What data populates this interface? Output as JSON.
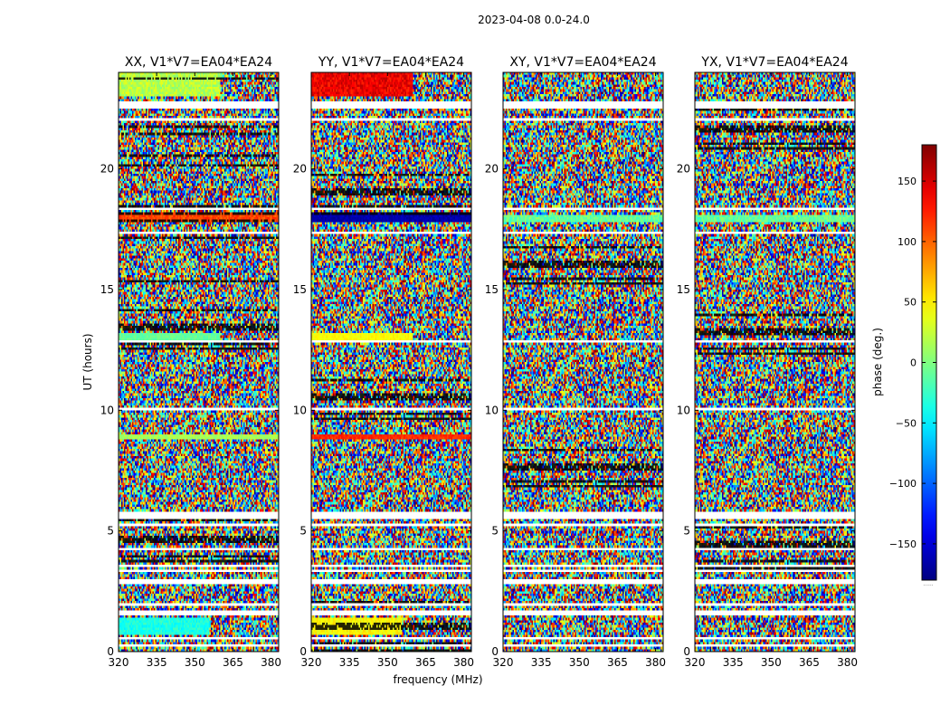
{
  "figure": {
    "suptitle": "2023-04-08 0.0-24.0",
    "xlabel": "frequency (MHz)",
    "ylabel": "UT (hours)",
    "colorbar_label": "phase (deg.)",
    "colorbar_tail_label": "......"
  },
  "chart_data": {
    "type": "heatmap",
    "title": "2023-04-08 0.0-24.0",
    "xlabel": "frequency (MHz)",
    "ylabel": "UT (hours)",
    "xlim": [
      320,
      383
    ],
    "ylim": [
      0,
      24
    ],
    "xticks": [
      320,
      335,
      350,
      365,
      380
    ],
    "xtick_labels": [
      "320",
      "335",
      "350",
      "365",
      "380"
    ],
    "yticks": [
      0,
      5,
      10,
      15,
      20
    ],
    "ytick_labels": [
      "0",
      "5",
      "10",
      "15",
      "20"
    ],
    "colorbar": {
      "label": "phase (deg.)",
      "range": [
        -180,
        180
      ],
      "ticks": [
        -150,
        -100,
        -50,
        0,
        50,
        100,
        150
      ],
      "tick_labels": [
        "−150",
        "−100",
        "−50",
        "0",
        "50",
        "100",
        "150"
      ],
      "colormap": "jet"
    },
    "flagged_ut_ranges": [
      [
        0.15,
        0.25
      ],
      [
        0.55,
        0.6
      ],
      [
        1.45,
        1.65
      ],
      [
        1.95,
        2.0
      ],
      [
        2.85,
        3.0
      ],
      [
        3.3,
        3.45
      ],
      [
        3.55,
        3.6
      ],
      [
        4.25,
        4.3
      ],
      [
        4.65,
        4.7
      ],
      [
        5.25,
        5.35
      ],
      [
        5.5,
        5.75
      ],
      [
        6.15,
        6.2
      ],
      [
        10.0,
        10.05
      ],
      [
        12.8,
        12.85
      ],
      [
        13.65,
        13.7
      ],
      [
        17.3,
        17.35
      ],
      [
        18.35,
        18.4
      ],
      [
        22.0,
        22.1
      ],
      [
        22.55,
        22.8
      ]
    ],
    "panels": [
      {
        "name": "XX",
        "title": "XX, V1*V7=EA04*EA24",
        "coherent_bands": [
          {
            "ut": [
              23.05,
              24.0
            ],
            "freq": [
              320,
              360
            ],
            "phase_deg": 20,
            "spread_deg": 40
          },
          {
            "ut": [
              17.85,
              18.15
            ],
            "freq": [
              320,
              383
            ],
            "phase_deg": 110,
            "spread_deg": 30
          },
          {
            "ut": [
              12.9,
              13.15
            ],
            "freq": [
              320,
              360
            ],
            "phase_deg": -10,
            "spread_deg": 20
          },
          {
            "ut": [
              8.8,
              9.0
            ],
            "freq": [
              320,
              383
            ],
            "phase_deg": 15,
            "spread_deg": 20
          },
          {
            "ut": [
              0.7,
              1.4
            ],
            "freq": [
              320,
              356
            ],
            "phase_deg": -35,
            "spread_deg": 30
          }
        ]
      },
      {
        "name": "YY",
        "title": "YY, V1*V7=EA04*EA24",
        "coherent_bands": [
          {
            "ut": [
              23.05,
              24.0
            ],
            "freq": [
              320,
              360
            ],
            "phase_deg": 140,
            "spread_deg": 40
          },
          {
            "ut": [
              17.85,
              18.15
            ],
            "freq": [
              320,
              383
            ],
            "phase_deg": -165,
            "spread_deg": 20
          },
          {
            "ut": [
              12.9,
              13.15
            ],
            "freq": [
              320,
              360
            ],
            "phase_deg": 45,
            "spread_deg": 20
          },
          {
            "ut": [
              8.8,
              9.0
            ],
            "freq": [
              320,
              383
            ],
            "phase_deg": 120,
            "spread_deg": 20
          },
          {
            "ut": [
              0.7,
              1.4
            ],
            "freq": [
              320,
              356
            ],
            "phase_deg": 45,
            "spread_deg": 30
          }
        ]
      },
      {
        "name": "XY",
        "title": "XY, V1*V7=EA04*EA24",
        "coherent_bands": [
          {
            "ut": [
              17.85,
              18.05
            ],
            "freq": [
              320,
              383
            ],
            "phase_deg": -10,
            "spread_deg": 40
          }
        ]
      },
      {
        "name": "YX",
        "title": "YX, V1*V7=EA04*EA24",
        "coherent_bands": [
          {
            "ut": [
              17.85,
              18.05
            ],
            "freq": [
              320,
              383
            ],
            "phase_deg": -10,
            "spread_deg": 40
          }
        ]
      }
    ]
  }
}
